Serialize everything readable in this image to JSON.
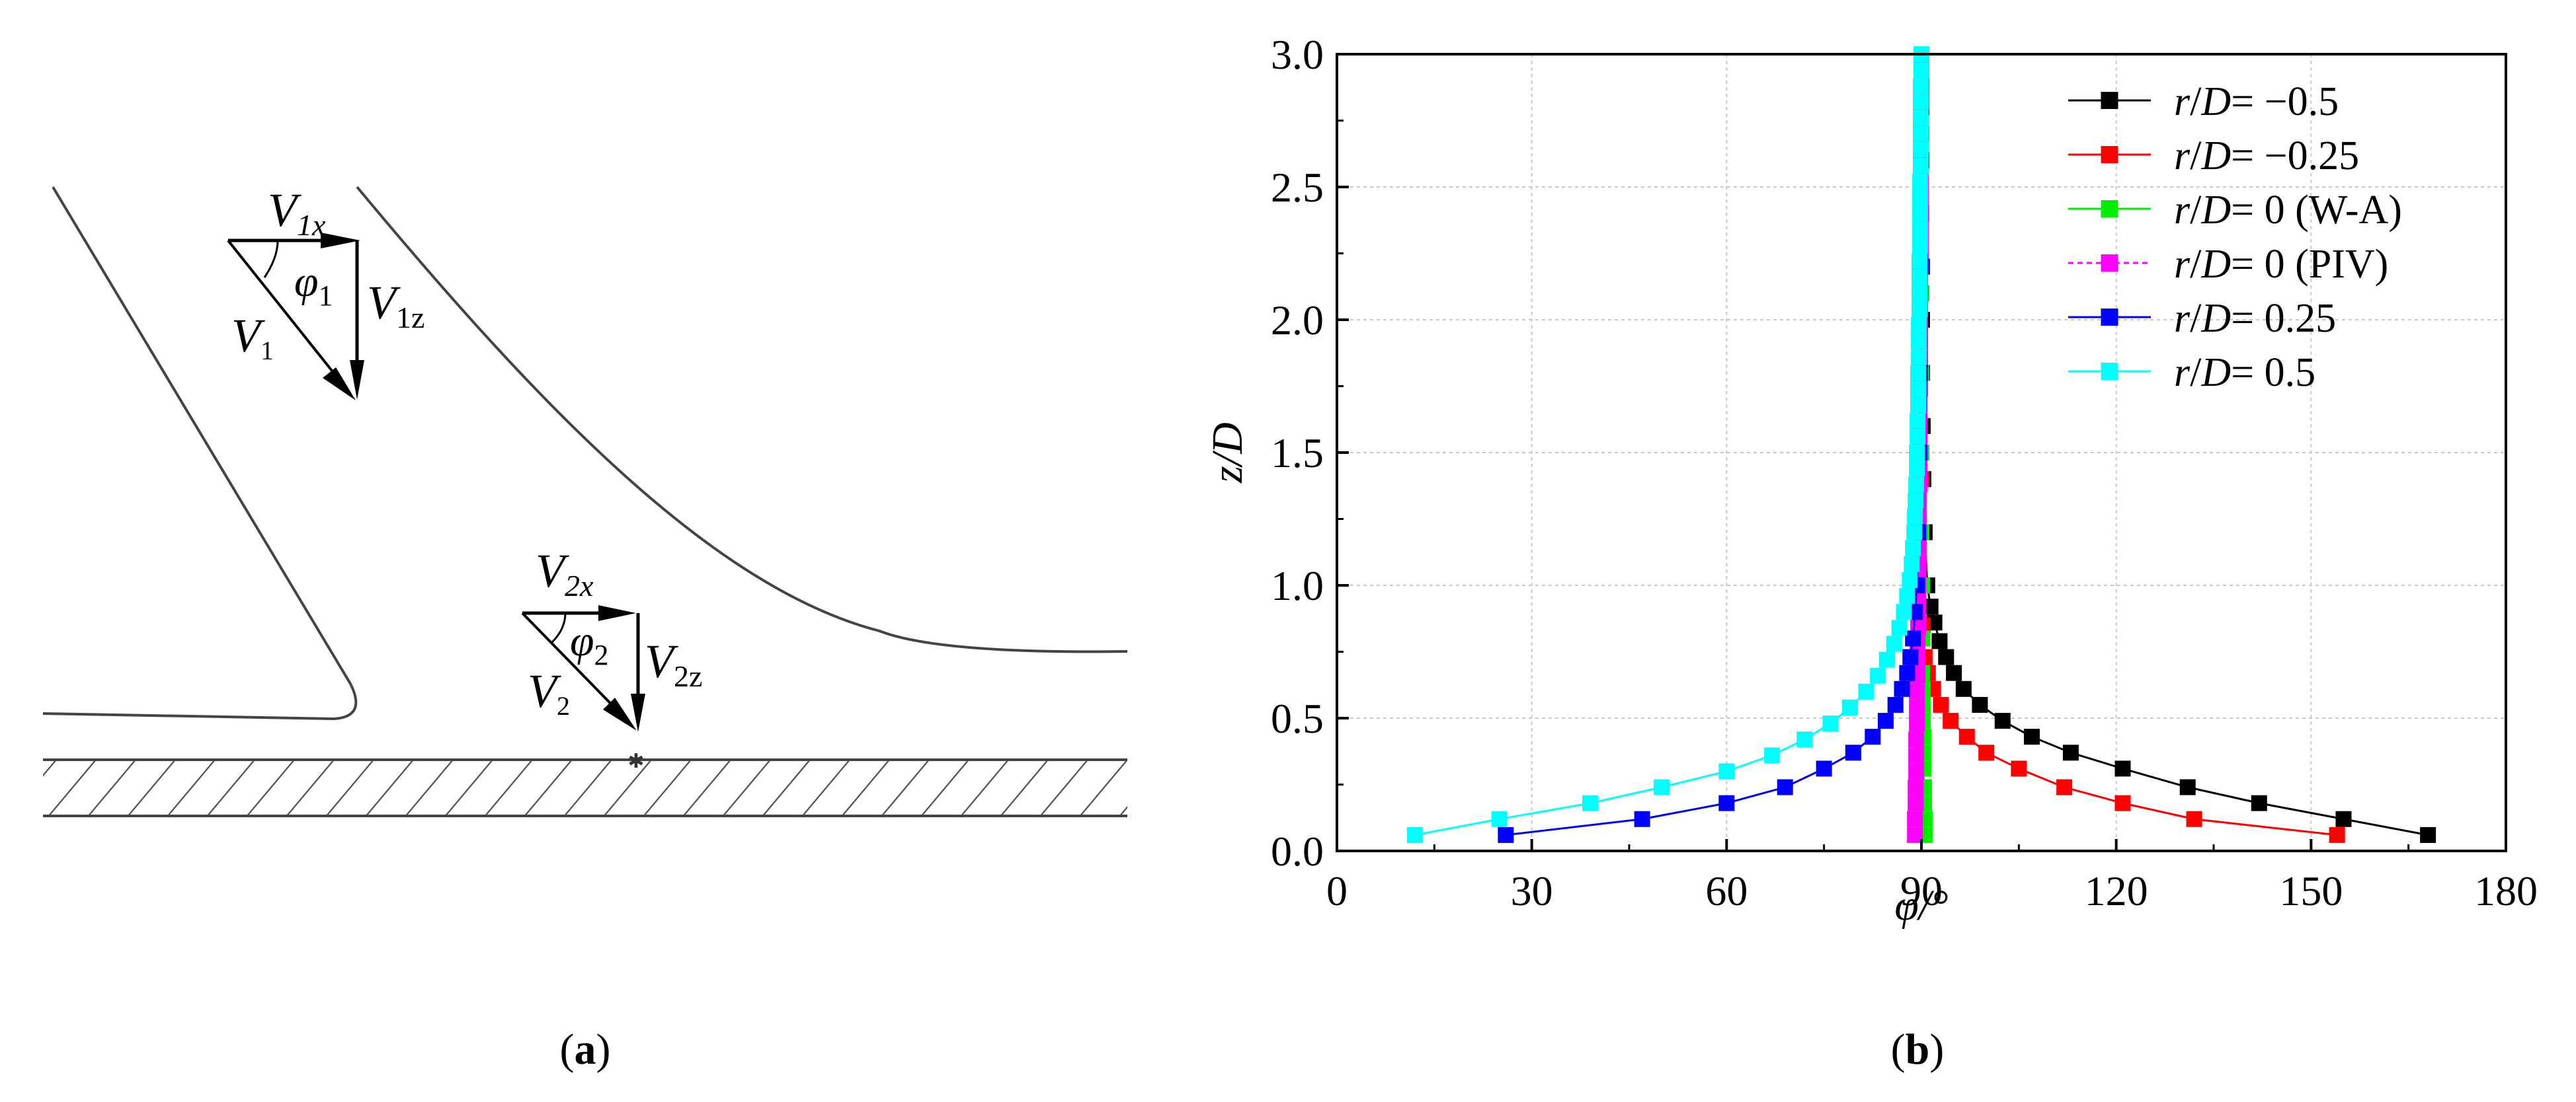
{
  "panels": {
    "a": {
      "label_open": "(",
      "label_letter": "a",
      "label_close": ")",
      "vectors": {
        "v1x_base": "V",
        "v1x_sub": "1x",
        "phi1_base": "φ",
        "phi1_sub": "1",
        "v1z_base": "V",
        "v1z_sub": "1z",
        "v1_base": "V",
        "v1_sub": "1",
        "v2x_base": "V",
        "v2x_sub": "2x",
        "phi2_base": "φ",
        "phi2_sub": "2",
        "v2z_base": "V",
        "v2z_sub": "2z",
        "v2_base": "V",
        "v2_sub": "2"
      }
    },
    "b": {
      "label_open": "(",
      "label_letter": "b",
      "label_close": ")"
    }
  },
  "chart_data": {
    "type": "line",
    "title": "",
    "xlabel": "φ/°",
    "ylabel": "z/D",
    "xlim": [
      0,
      180
    ],
    "ylim": [
      0,
      3.0
    ],
    "xticks": [
      0,
      30,
      60,
      90,
      120,
      150,
      180
    ],
    "yticks": [
      0.0,
      0.5,
      1.0,
      1.5,
      2.0,
      2.5,
      3.0
    ],
    "xtick_labels": [
      "0",
      "30",
      "60",
      "90",
      "120",
      "150",
      "180"
    ],
    "ytick_labels": [
      "0.0",
      "0.5",
      "1.0",
      "1.5",
      "2.0",
      "2.5",
      "3.0"
    ],
    "grid": true,
    "legend_position": "top-right",
    "series": [
      {
        "name": "r/D= −0.5",
        "legend_var1": "r",
        "legend_var2": "D",
        "legend_rest": "= −0.5",
        "color": "#000000",
        "dashed": false,
        "x": [
          168,
          155,
          142,
          131,
          121,
          113,
          107,
          102.5,
          99,
          96.5,
          95,
          93.8,
          92.8,
          92,
          91.4,
          90.9,
          90.5,
          90.3,
          90.2,
          90.1,
          90.1,
          90.1,
          90,
          90,
          90
        ],
        "y": [
          0.06,
          0.12,
          0.18,
          0.24,
          0.31,
          0.37,
          0.43,
          0.49,
          0.55,
          0.61,
          0.67,
          0.73,
          0.79,
          0.86,
          0.92,
          1.0,
          1.2,
          1.4,
          1.6,
          1.8,
          2.0,
          2.2,
          2.4,
          2.6,
          2.8
        ]
      },
      {
        "name": "r/D= −0.25",
        "legend_var1": "r",
        "legend_var2": "D",
        "legend_rest": "= −0.25",
        "color": "#ff0000",
        "dashed": false,
        "x": [
          154,
          132,
          121,
          112,
          105,
          100,
          97,
          94.5,
          93,
          91.8,
          91,
          90.5,
          90.2,
          90.1,
          90,
          90,
          90,
          90,
          90
        ],
        "y": [
          0.06,
          0.12,
          0.18,
          0.24,
          0.31,
          0.37,
          0.43,
          0.49,
          0.55,
          0.61,
          0.67,
          0.73,
          0.85,
          1.0,
          1.4,
          1.8,
          2.2,
          2.6,
          2.95
        ]
      },
      {
        "name": "r/D= 0 (W-A)",
        "legend_var1": "r",
        "legend_var2": "D",
        "legend_rest": "= 0 (W-A)",
        "color": "#00ee00",
        "dashed": false,
        "x": [
          90.5,
          90.5,
          90.4,
          90.4,
          90.3,
          90.3,
          90.3,
          90.2,
          90.2,
          90.2,
          90.1,
          90.1,
          90.1,
          90,
          90,
          90,
          90,
          90,
          90,
          90
        ],
        "y": [
          0.06,
          0.12,
          0.18,
          0.24,
          0.31,
          0.37,
          0.43,
          0.49,
          0.55,
          0.61,
          0.67,
          0.8,
          1.0,
          1.2,
          1.5,
          1.8,
          2.1,
          2.4,
          2.7,
          2.95
        ]
      },
      {
        "name": "r/D= 0  (PIV)",
        "legend_var1": "r",
        "legend_var2": "D",
        "legend_rest": "= 0  (PIV)",
        "color": "#ff00ff",
        "dashed": true,
        "x": [
          89,
          89,
          89.1,
          89.1,
          89.2,
          89.2,
          89.2,
          89.3,
          89.3,
          89.3,
          89.4,
          89.4,
          89.4,
          89.5,
          89.5,
          89.5,
          89.5,
          89.6,
          89.6,
          89.6,
          89.6,
          89.6,
          89.7,
          89.7,
          89.7,
          89.7,
          89.7,
          89.7,
          89.8,
          89.8,
          89.8,
          89.8,
          89.8,
          89.8,
          89.8,
          89.8,
          89.9,
          89.9,
          89.9,
          89.9,
          89.9,
          89.9,
          89.9,
          89.9,
          89.9,
          89.9,
          90,
          90,
          90,
          90
        ],
        "y": [
          0.06,
          0.12,
          0.18,
          0.24,
          0.3,
          0.36,
          0.42,
          0.48,
          0.54,
          0.6,
          0.66,
          0.72,
          0.78,
          0.84,
          0.9,
          0.96,
          1.02,
          1.08,
          1.14,
          1.2,
          1.26,
          1.32,
          1.38,
          1.44,
          1.5,
          1.56,
          1.62,
          1.68,
          1.74,
          1.8,
          1.86,
          1.92,
          1.98,
          2.04,
          2.1,
          2.16,
          2.22,
          2.28,
          2.34,
          2.4,
          2.46,
          2.52,
          2.58,
          2.64,
          2.7,
          2.76,
          2.82,
          2.88,
          2.94,
          3.0
        ]
      },
      {
        "name": "r/D= 0.25",
        "legend_var1": "r",
        "legend_var2": "D",
        "legend_rest": "= 0.25",
        "color": "#0000ff",
        "dashed": false,
        "x": [
          26,
          47,
          60,
          69,
          75,
          79.5,
          82.5,
          84.5,
          86,
          87,
          87.8,
          88.3,
          88.7,
          89,
          89.3,
          89.5,
          89.7,
          89.8,
          89.9,
          90,
          90
        ],
        "y": [
          0.06,
          0.12,
          0.18,
          0.24,
          0.31,
          0.37,
          0.43,
          0.49,
          0.55,
          0.61,
          0.67,
          0.73,
          0.8,
          0.9,
          1.0,
          1.2,
          1.5,
          1.8,
          2.2,
          2.6,
          2.95
        ]
      },
      {
        "name": "r/D= 0.5",
        "legend_var1": "r",
        "legend_var2": "D",
        "legend_rest": "= 0.5",
        "color": "#00ffff",
        "dashed": false,
        "x": [
          12,
          25,
          39,
          50,
          60,
          67,
          72,
          76,
          79,
          81.5,
          83.3,
          84.7,
          85.8,
          86.6,
          87.3,
          87.8,
          88.2,
          88.5,
          88.7,
          88.9,
          89,
          89.1,
          89.2,
          89.3,
          89.3,
          89.4,
          89.4,
          89.5,
          89.5,
          89.5,
          89.6,
          89.6,
          89.6,
          89.7,
          89.7,
          89.7,
          89.7,
          89.8,
          89.8,
          89.8,
          89.8,
          89.8,
          89.9,
          89.9,
          89.9,
          89.9,
          89.9,
          89.9,
          90,
          90
        ],
        "y": [
          0.06,
          0.12,
          0.18,
          0.24,
          0.3,
          0.36,
          0.42,
          0.48,
          0.54,
          0.6,
          0.66,
          0.72,
          0.78,
          0.84,
          0.9,
          0.96,
          1.02,
          1.08,
          1.14,
          1.2,
          1.26,
          1.32,
          1.38,
          1.44,
          1.5,
          1.56,
          1.62,
          1.68,
          1.74,
          1.8,
          1.86,
          1.92,
          1.98,
          2.04,
          2.1,
          2.16,
          2.22,
          2.28,
          2.34,
          2.4,
          2.46,
          2.52,
          2.58,
          2.64,
          2.7,
          2.76,
          2.82,
          2.88,
          2.94,
          3.0
        ]
      }
    ]
  }
}
